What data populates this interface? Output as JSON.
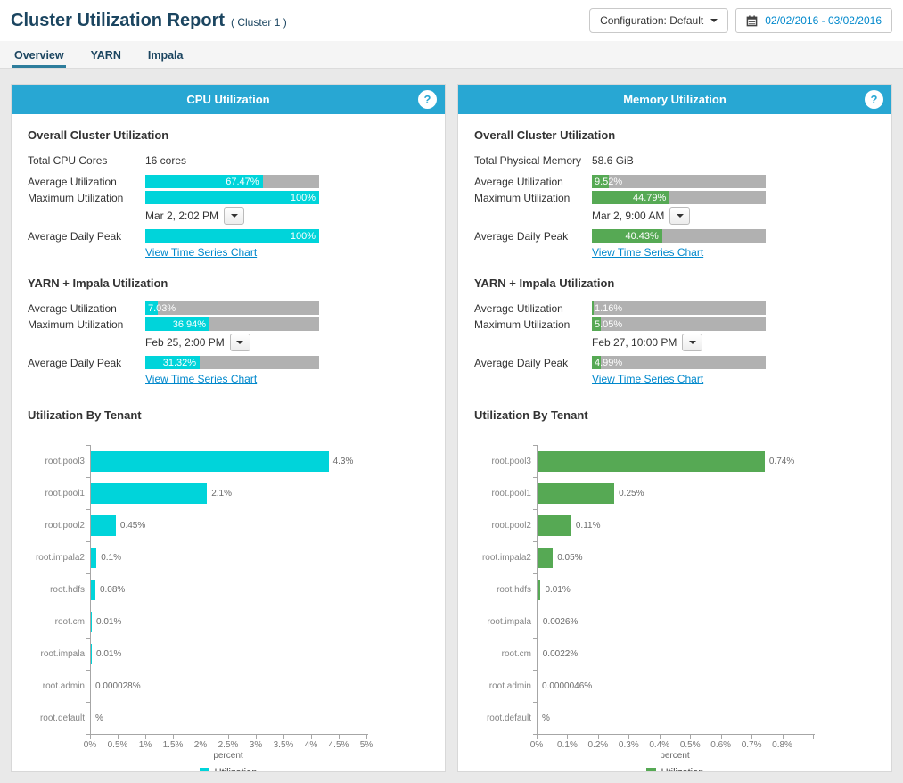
{
  "header": {
    "title": "Cluster Utilization Report",
    "subtitle": "( Cluster 1 )",
    "configuration_label": "Configuration: Default",
    "date_range": "02/02/2016 - 03/02/2016"
  },
  "tabs": [
    {
      "label": "Overview",
      "active": true
    },
    {
      "label": "YARN",
      "active": false
    },
    {
      "label": "Impala",
      "active": false
    }
  ],
  "colors": {
    "page_background": "#e9e9e9",
    "panel_header": "#28a7d3",
    "cpu_accent": "#00d4da",
    "memory_accent": "#56a954",
    "meter_track": "#b1b1b1",
    "link": "#0088cc",
    "title_navy": "#1b4560",
    "tab_underline": "#2d7d9c"
  },
  "panels": [
    {
      "id": "cpu",
      "title": "CPU Utilization",
      "help_glyph": "?",
      "accent": "#00d4da",
      "chart_heading": "Utilization By Tenant",
      "chart_index": 0,
      "sections": [
        {
          "heading": "Overall Cluster Utilization",
          "rows": [
            {
              "type": "text",
              "label": "Total CPU Cores",
              "value": "16 cores"
            },
            {
              "type": "meter",
              "label": "Average Utilization",
              "percent": 67.47,
              "display": "67.47%"
            },
            {
              "type": "meter",
              "label": "Maximum Utilization",
              "percent": 100,
              "display": "100%"
            },
            {
              "type": "timestamp",
              "value": "Mar 2, 2:02 PM"
            },
            {
              "type": "meter",
              "label": "Average Daily Peak",
              "percent": 100,
              "display": "100%"
            },
            {
              "type": "link",
              "label": "View Time Series Chart"
            }
          ]
        },
        {
          "heading": "YARN + Impala Utilization",
          "rows": [
            {
              "type": "meter",
              "label": "Average Utilization",
              "percent": 7.03,
              "display": "7.03%"
            },
            {
              "type": "meter",
              "label": "Maximum Utilization",
              "percent": 36.94,
              "display": "36.94%"
            },
            {
              "type": "timestamp",
              "value": "Feb 25, 2:00 PM"
            },
            {
              "type": "meter",
              "label": "Average Daily Peak",
              "percent": 31.32,
              "display": "31.32%"
            },
            {
              "type": "link",
              "label": "View Time Series Chart"
            }
          ]
        }
      ]
    },
    {
      "id": "memory",
      "title": "Memory Utilization",
      "help_glyph": "?",
      "accent": "#56a954",
      "chart_heading": "Utilization By Tenant",
      "chart_index": 1,
      "sections": [
        {
          "heading": "Overall Cluster Utilization",
          "rows": [
            {
              "type": "text",
              "label": "Total Physical Memory",
              "value": "58.6 GiB"
            },
            {
              "type": "meter",
              "label": "Average Utilization",
              "percent": 9.52,
              "display": "9.52%"
            },
            {
              "type": "meter",
              "label": "Maximum Utilization",
              "percent": 44.79,
              "display": "44.79%"
            },
            {
              "type": "timestamp",
              "value": "Mar 2, 9:00 AM"
            },
            {
              "type": "meter",
              "label": "Average Daily Peak",
              "percent": 40.43,
              "display": "40.43%"
            },
            {
              "type": "link",
              "label": "View Time Series Chart"
            }
          ]
        },
        {
          "heading": "YARN + Impala Utilization",
          "rows": [
            {
              "type": "meter",
              "label": "Average Utilization",
              "percent": 1.16,
              "display": "1.16%"
            },
            {
              "type": "meter",
              "label": "Maximum Utilization",
              "percent": 5.05,
              "display": "5.05%"
            },
            {
              "type": "timestamp",
              "value": "Feb 27, 10:00 PM"
            },
            {
              "type": "meter",
              "label": "Average Daily Peak",
              "percent": 4.99,
              "display": "4.99%"
            },
            {
              "type": "link",
              "label": "View Time Series Chart"
            }
          ]
        }
      ]
    }
  ],
  "chart_data": [
    {
      "type": "bar",
      "orientation": "horizontal",
      "title": "Utilization By Tenant",
      "panel": "CPU Utilization",
      "categories": [
        "root.pool3",
        "root.pool1",
        "root.pool2",
        "root.impala2",
        "root.hdfs",
        "root.cm",
        "root.impala",
        "root.admin",
        "root.default"
      ],
      "values": [
        4.3,
        2.1,
        0.45,
        0.1,
        0.08,
        0.01,
        0.01,
        2.8e-05,
        0
      ],
      "value_labels": [
        "4.3%",
        "2.1%",
        "0.45%",
        "0.1%",
        "0.08%",
        "0.01%",
        "0.01%",
        "0.000028%",
        "%"
      ],
      "xlabel": "percent",
      "xlim": [
        0,
        5
      ],
      "ticks": [
        {
          "value": 0,
          "label": "0%"
        },
        {
          "value": 0.5,
          "label": "0.5%"
        },
        {
          "value": 1,
          "label": "1%"
        },
        {
          "value": 1.5,
          "label": "1.5%"
        },
        {
          "value": 2,
          "label": "2%"
        },
        {
          "value": 2.5,
          "label": "2.5%"
        },
        {
          "value": 3,
          "label": "3%"
        },
        {
          "value": 3.5,
          "label": "3.5%"
        },
        {
          "value": 4,
          "label": "4%"
        },
        {
          "value": 4.5,
          "label": "4.5%"
        },
        {
          "value": 5,
          "label": "5%"
        }
      ],
      "legend": {
        "label": "Utilization",
        "color": "#00d4da"
      },
      "bar_color": "#00d4da",
      "grid": false,
      "legend_position": "bottom"
    },
    {
      "type": "bar",
      "orientation": "horizontal",
      "title": "Utilization By Tenant",
      "panel": "Memory Utilization",
      "categories": [
        "root.pool3",
        "root.pool1",
        "root.pool2",
        "root.impala2",
        "root.hdfs",
        "root.impala",
        "root.cm",
        "root.admin",
        "root.default"
      ],
      "values": [
        0.74,
        0.25,
        0.11,
        0.05,
        0.01,
        0.0026,
        0.0022,
        4.6e-06,
        0
      ],
      "value_labels": [
        "0.74%",
        "0.25%",
        "0.11%",
        "0.05%",
        "0.01%",
        "0.0026%",
        "0.0022%",
        "0.0000046%",
        "%"
      ],
      "xlabel": "percent",
      "xlim": [
        0,
        0.9
      ],
      "ticks": [
        {
          "value": 0,
          "label": "0%"
        },
        {
          "value": 0.1,
          "label": "0.1%"
        },
        {
          "value": 0.2,
          "label": "0.2%"
        },
        {
          "value": 0.3,
          "label": "0.3%"
        },
        {
          "value": 0.4,
          "label": "0.4%"
        },
        {
          "value": 0.5,
          "label": "0.5%"
        },
        {
          "value": 0.6,
          "label": "0.6%"
        },
        {
          "value": 0.7,
          "label": "0.7%"
        },
        {
          "value": 0.8,
          "label": "0.8%"
        },
        {
          "value": 0.9,
          "label": ""
        }
      ],
      "legend": {
        "label": "Utilization",
        "color": "#56a954"
      },
      "bar_color": "#56a954",
      "grid": false,
      "legend_position": "bottom"
    }
  ]
}
